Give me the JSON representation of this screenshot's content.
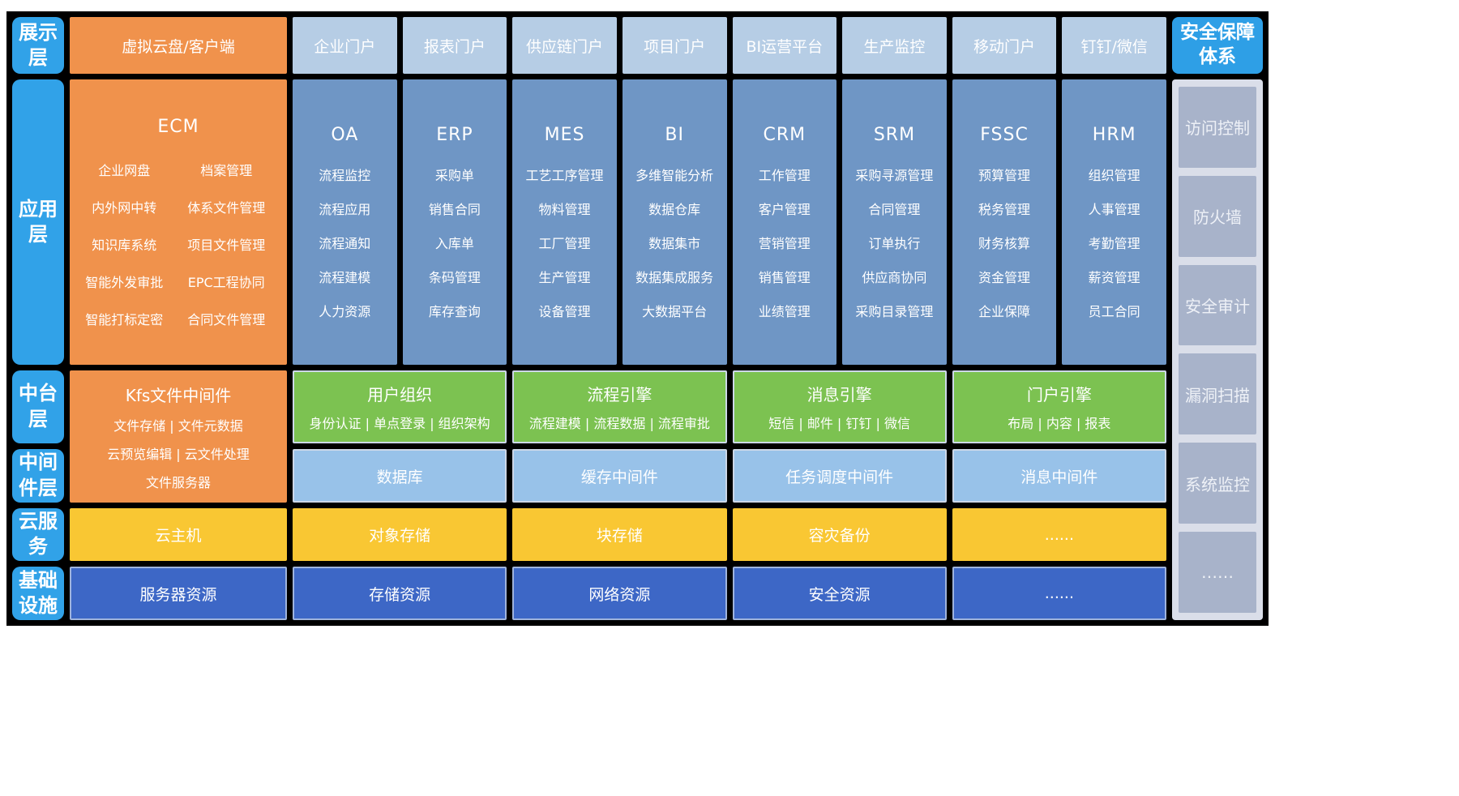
{
  "left_labels": [
    "展示层",
    "应用层",
    "中台层",
    "中间件层",
    "云服务",
    "基础设施"
  ],
  "display_row": {
    "cloud_client": "虚拟云盘/客户端",
    "portals": [
      "企业门户",
      "报表门户",
      "供应链门户",
      "项目门户",
      "BI运营平台",
      "生产监控",
      "移动门户",
      "钉钉/微信"
    ]
  },
  "app": {
    "ecm": {
      "title": "ECM",
      "rows": [
        [
          "企业网盘",
          "档案管理"
        ],
        [
          "内外网中转",
          "体系文件管理"
        ],
        [
          "知识库系统",
          "项目文件管理"
        ],
        [
          "智能外发审批",
          "EPC工程协同"
        ],
        [
          "智能打标定密",
          "合同文件管理"
        ]
      ]
    },
    "columns": [
      {
        "title": "OA",
        "items": [
          "流程监控",
          "流程应用",
          "流程通知",
          "流程建模",
          "人力资源"
        ]
      },
      {
        "title": "ERP",
        "items": [
          "采购单",
          "销售合同",
          "入库单",
          "条码管理",
          "库存查询"
        ]
      },
      {
        "title": "MES",
        "items": [
          "工艺工序管理",
          "物料管理",
          "工厂管理",
          "生产管理",
          "设备管理"
        ]
      },
      {
        "title": "BI",
        "items": [
          "多维智能分析",
          "数据仓库",
          "数据集市",
          "数据集成服务",
          "大数据平台"
        ]
      },
      {
        "title": "CRM",
        "items": [
          "工作管理",
          "客户管理",
          "营销管理",
          "销售管理",
          "业绩管理"
        ]
      },
      {
        "title": "SRM",
        "items": [
          "采购寻源管理",
          "合同管理",
          "订单执行",
          "供应商协同",
          "采购目录管理"
        ]
      },
      {
        "title": "FSSC",
        "items": [
          "预算管理",
          "税务管理",
          "财务核算",
          "资金管理",
          "企业保障"
        ]
      },
      {
        "title": "HRM",
        "items": [
          "组织管理",
          "人事管理",
          "考勤管理",
          "薪资管理",
          "员工合同"
        ]
      }
    ]
  },
  "platform": {
    "kfs": {
      "title": "Kfs文件中间件",
      "lines": [
        "文件存储 | 文件元数据",
        "云预览编辑 | 云文件处理",
        "文件服务器"
      ]
    },
    "engines": [
      {
        "title": "用户组织",
        "subtitle": "身份认证 | 单点登录 | 组织架构"
      },
      {
        "title": "流程引擎",
        "subtitle": "流程建模 | 流程数据 | 流程审批"
      },
      {
        "title": "消息引擎",
        "subtitle": "短信 | 邮件 | 钉钉 | 微信"
      },
      {
        "title": "门户引擎",
        "subtitle": "布局 | 内容 | 报表"
      }
    ]
  },
  "middleware_row": [
    "数据库",
    "缓存中间件",
    "任务调度中间件",
    "消息中间件"
  ],
  "cloud_row": [
    "云主机",
    "对象存储",
    "块存储",
    "容灾备份",
    "......"
  ],
  "infra_row": [
    "服务器资源",
    "存储资源",
    "网络资源",
    "安全资源",
    "......"
  ],
  "security": {
    "title": "安全保障体系",
    "items": [
      "访问控制",
      "防火墙",
      "安全审计",
      "漏洞扫描",
      "系统监控",
      "……"
    ]
  },
  "colors": {
    "grid_background": "#000000",
    "accent_blue": "#31a2e8",
    "orange": "#f0924c",
    "portal_tile_blue": "#b6cde5",
    "app_column_blue": "#6f96c5",
    "engine_green": "#7cc251",
    "middleware_blue": "#98c2e9",
    "cloud_yellow": "#f9c733",
    "infra_blue": "#3d67c6",
    "security_panel": "#dadee9",
    "security_block": "#a8b3ca"
  }
}
